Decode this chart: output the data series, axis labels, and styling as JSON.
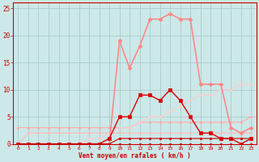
{
  "x": [
    0,
    1,
    2,
    3,
    4,
    5,
    6,
    7,
    8,
    9,
    10,
    11,
    12,
    13,
    14,
    15,
    16,
    17,
    18,
    19,
    20,
    21,
    22,
    23
  ],
  "background_color": "#cce8e8",
  "grid_color": "#aacccc",
  "xlabel": "Vent moyen/en rafales ( km/h )",
  "xlabel_color": "#cc0000",
  "tick_color": "#cc0000",
  "ylim": [
    0,
    26
  ],
  "yticks": [
    0,
    5,
    10,
    15,
    20,
    25
  ],
  "series": [
    {
      "label": "line_pale_flat_high",
      "color": "#ffaaaa",
      "lw": 0.8,
      "marker": "D",
      "ms": 1.5,
      "data": [
        3,
        3,
        3,
        3,
        3,
        3,
        3,
        3,
        3,
        3,
        3,
        3,
        4,
        4,
        4,
        4,
        4,
        4,
        4,
        4,
        4,
        4,
        4,
        5
      ]
    },
    {
      "label": "line_pale_low",
      "color": "#ffbbbb",
      "lw": 0.8,
      "marker": "D",
      "ms": 1.5,
      "data": [
        0,
        2,
        2,
        2,
        2,
        2,
        2,
        2,
        2,
        2,
        2,
        2,
        2,
        2,
        2,
        2,
        2,
        2,
        2,
        2,
        2,
        2,
        2,
        2
      ]
    },
    {
      "label": "line_pale_rising",
      "color": "#ffcccc",
      "lw": 0.8,
      "marker": "D",
      "ms": 1.5,
      "data": [
        0,
        0,
        0,
        0,
        0,
        0,
        0,
        1,
        1,
        2,
        3,
        3,
        4,
        5,
        5,
        6,
        7,
        8,
        9,
        9,
        10,
        10,
        11,
        11
      ]
    },
    {
      "label": "line_pink_peak",
      "color": "#ff8888",
      "lw": 1.2,
      "marker": "D",
      "ms": 2.5,
      "data": [
        0,
        0,
        0,
        0,
        0,
        0,
        0,
        0,
        0,
        0,
        19,
        14,
        18,
        23,
        23,
        24,
        23,
        23,
        11,
        11,
        11,
        3,
        2,
        3
      ]
    },
    {
      "label": "line_red_main",
      "color": "#dd0000",
      "lw": 1.0,
      "marker": "s",
      "ms": 2.5,
      "data": [
        0,
        0,
        0,
        0,
        0,
        0,
        0,
        0,
        0,
        1,
        5,
        5,
        9,
        9,
        8,
        10,
        8,
        5,
        2,
        2,
        1,
        1,
        0,
        1
      ]
    },
    {
      "label": "line_dark_flat",
      "color": "#cc0000",
      "lw": 0.8,
      "marker": "s",
      "ms": 1.5,
      "data": [
        0,
        0,
        0,
        0,
        0,
        0,
        0,
        0,
        0,
        0,
        1,
        1,
        1,
        1,
        1,
        1,
        1,
        1,
        1,
        1,
        1,
        1,
        1,
        1
      ]
    },
    {
      "label": "line_darkest",
      "color": "#aa0000",
      "lw": 0.7,
      "marker": "s",
      "ms": 1.5,
      "data": [
        0,
        0,
        0,
        0,
        0,
        0,
        0,
        0,
        0,
        0,
        0,
        0,
        0,
        0,
        0,
        0,
        0,
        0,
        0,
        0,
        0,
        0,
        0,
        0
      ]
    }
  ]
}
